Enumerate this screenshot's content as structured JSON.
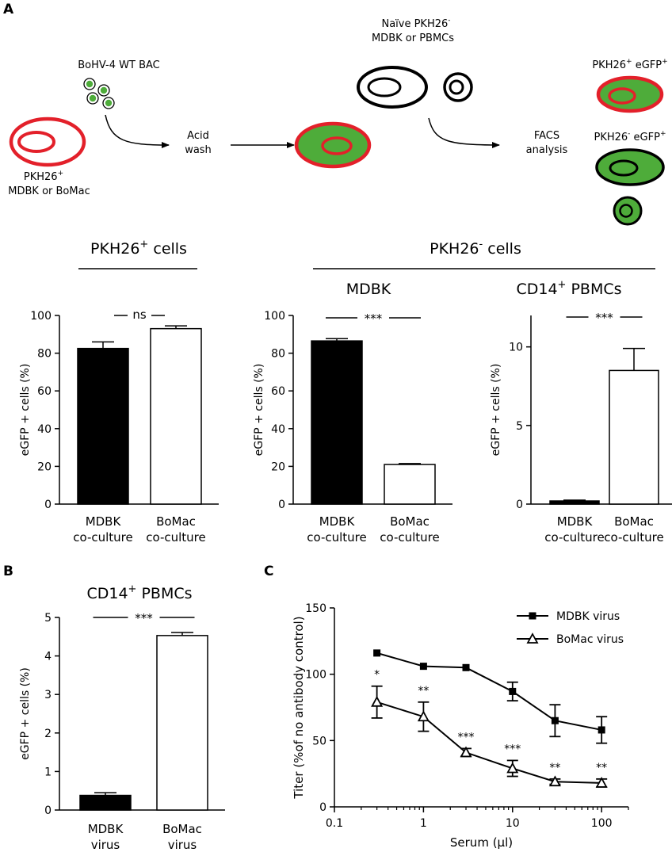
{
  "panels": {
    "a": "A",
    "b": "B",
    "c": "C"
  },
  "schematic": {
    "virus_label": "BoHV-4 WT BAC",
    "donor_line1": "PKH26",
    "donor_sup": "+",
    "donor_line2": "MDBK or BoMac",
    "acid_line1": "Acid",
    "acid_line2": "wash",
    "naive_line1": "Naïve PKH26",
    "naive_sup": "-",
    "naive_line2": "MDBK or PBMCs",
    "facs_line1": "FACS",
    "facs_line2": "analysis",
    "out1_a": "PKH26",
    "out1_sup1": "+",
    "out1_b": " eGFP",
    "out1_sup2": "+",
    "out2_a": "PKH26",
    "out2_sup1": "-",
    "out2_b": " eGFP",
    "out2_sup2": "+"
  },
  "headers": {
    "pos_a": "PKH26",
    "pos_sup": "+",
    "pos_b": " cells",
    "neg_a": "PKH26",
    "neg_sup": "-",
    "neg_b": " cells",
    "mdbk": "MDBK",
    "cd14_a": "CD14",
    "cd14_sup": "+",
    "cd14_b": " PBMCs"
  },
  "colors": {
    "red": "#e3202a",
    "green": "#4eac3a",
    "black": "#000000",
    "white": "#ffffff"
  },
  "chart_data": [
    {
      "id": "a1",
      "type": "bar",
      "title": "",
      "ylabel": "eGFP + cells (%)",
      "ylim": [
        0,
        100
      ],
      "yticks": [
        0,
        20,
        40,
        60,
        80,
        100
      ],
      "categories": [
        [
          "MDBK",
          "co-culture"
        ],
        [
          "BoMac",
          "co-culture"
        ]
      ],
      "values": [
        82.5,
        93
      ],
      "errors": [
        3.5,
        1.5
      ],
      "fills": [
        "#000000",
        "#ffffff"
      ],
      "significance": "ns"
    },
    {
      "id": "a2",
      "type": "bar",
      "title": "",
      "ylabel": "eGFP + cells (%)",
      "ylim": [
        0,
        100
      ],
      "yticks": [
        0,
        20,
        40,
        60,
        80,
        100
      ],
      "categories": [
        [
          "MDBK",
          "co-culture"
        ],
        [
          "BoMac",
          "co-culture"
        ]
      ],
      "values": [
        86.5,
        21
      ],
      "errors": [
        1.2,
        0.5
      ],
      "fills": [
        "#000000",
        "#ffffff"
      ],
      "significance": "***"
    },
    {
      "id": "a3",
      "type": "bar",
      "title": "",
      "ylabel": "eGFP + cells (%)",
      "ylim": [
        0,
        12
      ],
      "yticks": [
        0,
        5,
        10
      ],
      "categories": [
        [
          "MDBK",
          "co-culture"
        ],
        [
          "BoMac",
          "co-culture"
        ]
      ],
      "values": [
        0.2,
        8.5
      ],
      "errors": [
        0.05,
        1.4
      ],
      "fills": [
        "#000000",
        "#ffffff"
      ],
      "significance": "***"
    },
    {
      "id": "b",
      "type": "bar",
      "title": "",
      "ylabel": "eGFP + cells (%)",
      "ylim": [
        0,
        5
      ],
      "yticks": [
        0,
        1,
        2,
        3,
        4,
        5
      ],
      "categories": [
        [
          "MDBK",
          "virus"
        ],
        [
          "BoMac",
          "virus"
        ]
      ],
      "values": [
        0.38,
        4.53
      ],
      "errors": [
        0.07,
        0.08
      ],
      "fills": [
        "#000000",
        "#ffffff"
      ],
      "significance": "***"
    },
    {
      "id": "c",
      "type": "line",
      "xlabel": "Serum (µl)",
      "ylabel": "Titer (%of no antibody control)",
      "xscale": "log",
      "xlim": [
        0.1,
        200
      ],
      "ylim": [
        0,
        150
      ],
      "xticks": [
        0.1,
        1,
        10,
        100
      ],
      "xticklabels": [
        "0.1",
        "1",
        "10",
        "100"
      ],
      "yticks": [
        0,
        50,
        100,
        150
      ],
      "legend": "top-right",
      "x": [
        0.3,
        1,
        3,
        10,
        30,
        100
      ],
      "series": [
        {
          "name": "MDBK virus",
          "marker": "square",
          "values": [
            116,
            106,
            105,
            87,
            65,
            58
          ],
          "errors": [
            0,
            0,
            0,
            7,
            12,
            10
          ]
        },
        {
          "name": "BoMac virus",
          "marker": "triangle",
          "values": [
            79,
            68,
            41,
            29,
            19,
            18
          ],
          "errors": [
            12,
            11,
            3,
            6,
            2,
            3
          ]
        }
      ],
      "annotations": [
        "*",
        "**",
        "***",
        "***",
        "**",
        "**"
      ]
    }
  ]
}
